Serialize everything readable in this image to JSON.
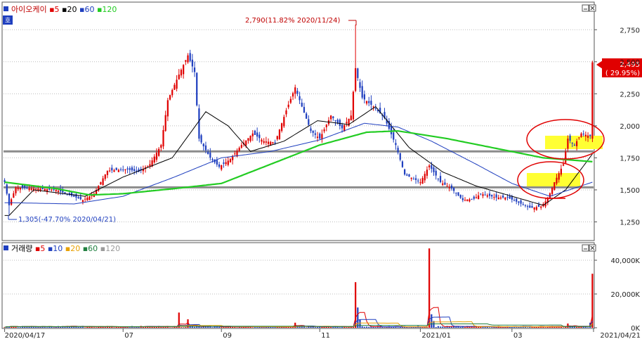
{
  "chart_data": {
    "type": "candlestick",
    "price_panel": {
      "legend": [
        {
          "text": "아이오케이",
          "color": "#c00000"
        },
        {
          "text": "5",
          "color": "#e00000"
        },
        {
          "text": "20",
          "color": "#000000"
        },
        {
          "text": "60",
          "color": "#1f3fbf"
        },
        {
          "text": "120",
          "color": "#22cc22"
        }
      ],
      "y_ticks": [
        "2,750",
        "2,500",
        "2,250",
        "2,000",
        "1,750",
        "1,500",
        "1,250"
      ],
      "y_tick_values": [
        2750,
        2500,
        2250,
        2000,
        1750,
        1500,
        1250
      ],
      "ylim": [
        1110,
        2960
      ],
      "x_ticks": [
        {
          "label": "2020/04/17",
          "date": "2020-04-17"
        },
        {
          "label": "07",
          "date": "2020-07-01"
        },
        {
          "label": "09",
          "date": "2020-09-01"
        },
        {
          "label": "11",
          "date": "2020-11-01"
        },
        {
          "label": "2021/01",
          "date": "2021-01-04"
        },
        {
          "label": "03",
          "date": "2021-03-02"
        },
        {
          "label": "2021/04/21",
          "date": "2021-04-21"
        }
      ],
      "high_annotation": {
        "text": "2,790(11.82% 2020/11/24)",
        "value": 2790,
        "date": "2020-11-24"
      },
      "low_annotation": {
        "text": "1,305(-47.70% 2020/04/21)",
        "value": 1305,
        "date": "2020-04-21"
      },
      "last_price": {
        "text": "2,495",
        "pct": "( 29.95%)",
        "value": 2495
      },
      "support_lines": [
        1800,
        1520
      ],
      "anchors": [
        [
          "2020-04-17",
          1560
        ],
        [
          "2020-04-21",
          1380
        ],
        [
          "2020-04-24",
          1520
        ],
        [
          "2020-05-06",
          1510
        ],
        [
          "2020-05-20",
          1500
        ],
        [
          "2020-06-05",
          1420
        ],
        [
          "2020-06-12",
          1470
        ],
        [
          "2020-06-22",
          1650
        ],
        [
          "2020-07-03",
          1660
        ],
        [
          "2020-07-10",
          1640
        ],
        [
          "2020-07-17",
          1700
        ],
        [
          "2020-07-24",
          1850
        ],
        [
          "2020-07-29",
          2200
        ],
        [
          "2020-08-05",
          2400
        ],
        [
          "2020-08-11",
          2550
        ],
        [
          "2020-08-14",
          2420
        ],
        [
          "2020-08-18",
          1900
        ],
        [
          "2020-08-25",
          1750
        ],
        [
          "2020-08-31",
          1680
        ],
        [
          "2020-09-07",
          1740
        ],
        [
          "2020-09-14",
          1850
        ],
        [
          "2020-09-21",
          1940
        ],
        [
          "2020-09-28",
          1880
        ],
        [
          "2020-10-05",
          1870
        ],
        [
          "2020-10-12",
          2120
        ],
        [
          "2020-10-16",
          2300
        ],
        [
          "2020-10-21",
          2150
        ],
        [
          "2020-10-27",
          1960
        ],
        [
          "2020-11-02",
          1900
        ],
        [
          "2020-11-09",
          2080
        ],
        [
          "2020-11-16",
          1980
        ],
        [
          "2020-11-20",
          2080
        ],
        [
          "2020-11-24",
          2450
        ],
        [
          "2020-11-27",
          2220
        ],
        [
          "2020-12-04",
          2150
        ],
        [
          "2020-12-11",
          2060
        ],
        [
          "2020-12-18",
          1850
        ],
        [
          "2020-12-24",
          1620
        ],
        [
          "2021-01-04",
          1560
        ],
        [
          "2021-01-08",
          1690
        ],
        [
          "2021-01-15",
          1560
        ],
        [
          "2021-01-22",
          1510
        ],
        [
          "2021-01-29",
          1420
        ],
        [
          "2021-02-05",
          1430
        ],
        [
          "2021-02-10",
          1470
        ],
        [
          "2021-02-19",
          1440
        ],
        [
          "2021-02-26",
          1440
        ],
        [
          "2021-03-05",
          1400
        ],
        [
          "2021-03-12",
          1360
        ],
        [
          "2021-03-19",
          1370
        ],
        [
          "2021-03-24",
          1430
        ],
        [
          "2021-03-29",
          1560
        ],
        [
          "2021-04-02",
          1700
        ],
        [
          "2021-04-06",
          1900
        ],
        [
          "2021-04-09",
          1850
        ],
        [
          "2021-04-14",
          1940
        ],
        [
          "2021-04-20",
          1920
        ],
        [
          "2021-04-21",
          2495
        ]
      ],
      "ma_anchors": {
        "20": [
          [
            "2020-04-21",
            1300
          ],
          [
            "2020-05-06",
            1500
          ],
          [
            "2020-06-08",
            1450
          ],
          [
            "2020-07-01",
            1600
          ],
          [
            "2020-07-31",
            1750
          ],
          [
            "2020-08-21",
            2110
          ],
          [
            "2020-09-04",
            2000
          ],
          [
            "2020-09-18",
            1800
          ],
          [
            "2020-10-09",
            1880
          ],
          [
            "2020-10-30",
            2040
          ],
          [
            "2020-11-19",
            2010
          ],
          [
            "2020-12-07",
            2150
          ],
          [
            "2020-12-28",
            1830
          ],
          [
            "2021-01-18",
            1640
          ],
          [
            "2021-02-08",
            1530
          ],
          [
            "2021-03-02",
            1450
          ],
          [
            "2021-03-22",
            1380
          ],
          [
            "2021-04-05",
            1500
          ],
          [
            "2021-04-21",
            1780
          ]
        ],
        "60": [
          [
            "2020-04-21",
            1400
          ],
          [
            "2020-06-01",
            1390
          ],
          [
            "2020-07-01",
            1450
          ],
          [
            "2020-08-03",
            1600
          ],
          [
            "2020-09-01",
            1750
          ],
          [
            "2020-10-01",
            1800
          ],
          [
            "2020-11-02",
            1890
          ],
          [
            "2020-11-30",
            2020
          ],
          [
            "2020-12-21",
            1990
          ],
          [
            "2021-01-11",
            1880
          ],
          [
            "2021-02-08",
            1700
          ],
          [
            "2021-03-02",
            1550
          ],
          [
            "2021-03-25",
            1450
          ],
          [
            "2021-04-21",
            1560
          ]
        ],
        "120": [
          [
            "2020-04-17",
            1560
          ],
          [
            "2020-05-20",
            1510
          ],
          [
            "2020-06-10",
            1460
          ],
          [
            "2020-07-01",
            1470
          ],
          [
            "2020-08-03",
            1510
          ],
          [
            "2020-09-01",
            1550
          ],
          [
            "2020-10-01",
            1700
          ],
          [
            "2020-11-02",
            1850
          ],
          [
            "2020-12-01",
            1950
          ],
          [
            "2020-12-21",
            1960
          ],
          [
            "2021-01-20",
            1900
          ],
          [
            "2021-02-22",
            1820
          ],
          [
            "2021-03-22",
            1750
          ],
          [
            "2021-04-21",
            1720
          ]
        ]
      }
    },
    "volume_panel": {
      "legend": [
        {
          "text": "거래량",
          "color": "#1f3fbf"
        },
        {
          "text": "5",
          "color": "#e00000"
        },
        {
          "text": "10",
          "color": "#1f3fbf"
        },
        {
          "text": "20",
          "color": "#e8a000"
        },
        {
          "text": "60",
          "color": "#1f7f3f"
        },
        {
          "text": "120",
          "color": "#9a9a9a"
        }
      ],
      "y_ticks": [
        "40,000K",
        "20,000K",
        "0K"
      ],
      "y_tick_values": [
        40000,
        20000,
        0
      ],
      "ylim": [
        0,
        50000
      ],
      "base_volume_k": 600,
      "spikes": [
        [
          "2020-08-05",
          9000
        ],
        [
          "2020-08-11",
          5000
        ],
        [
          "2020-10-16",
          3000
        ],
        [
          "2020-11-24",
          27000
        ],
        [
          "2020-11-25",
          12000
        ],
        [
          "2020-11-26",
          5000
        ],
        [
          "2021-01-08",
          47000
        ],
        [
          "2021-01-11",
          8000
        ],
        [
          "2021-01-12",
          4000
        ],
        [
          "2021-04-06",
          2500
        ],
        [
          "2021-04-20",
          3000
        ],
        [
          "2021-04-21",
          32000
        ]
      ]
    }
  }
}
